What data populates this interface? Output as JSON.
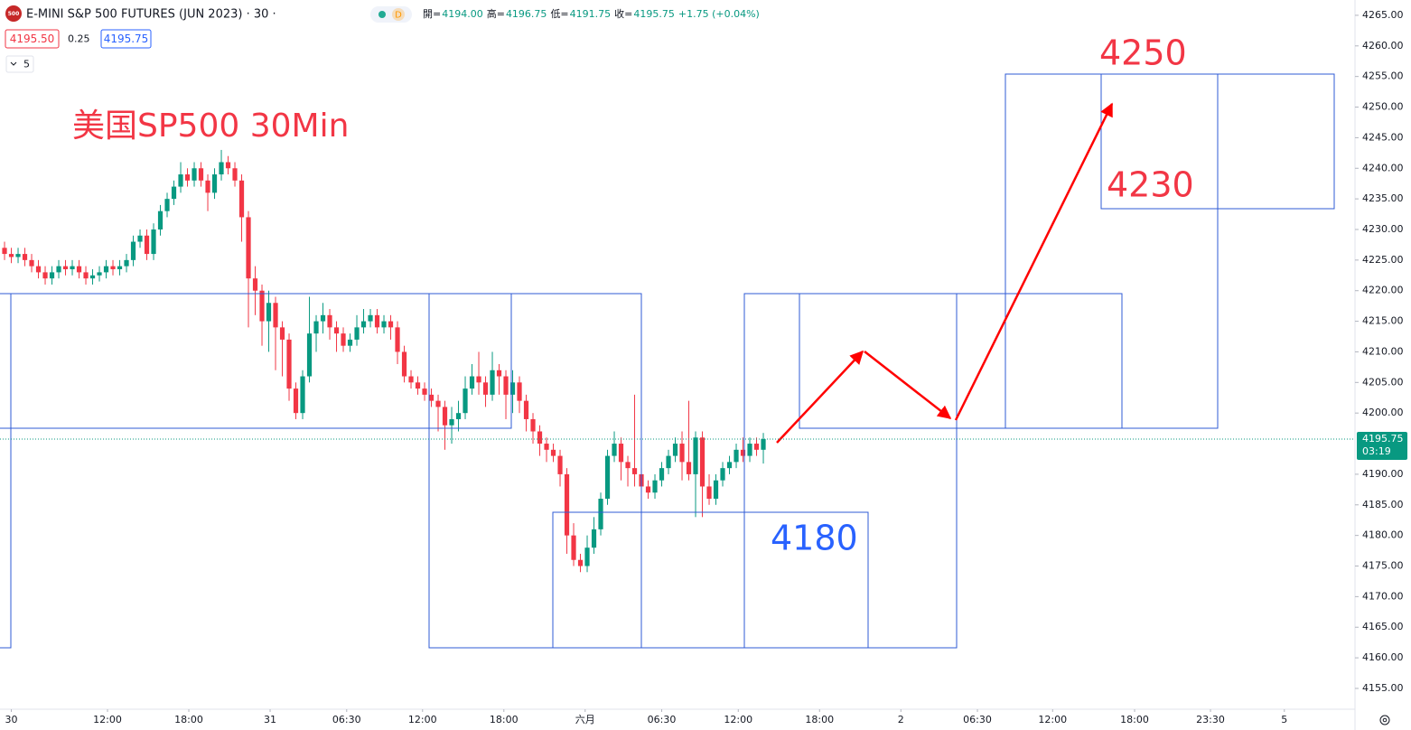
{
  "header": {
    "symbol_icon": "500",
    "symbol": "E-MINI S&P 500 FUTURES (JUN 2023) · 30 ·",
    "status": "D",
    "ohlc": [
      {
        "label": "開=",
        "value": "4194.00"
      },
      {
        "label": "高=",
        "value": "4196.75"
      },
      {
        "label": "低=",
        "value": "4191.75"
      },
      {
        "label": "收=",
        "value": "4195.75"
      }
    ],
    "change": "+1.75 (+0.04%)",
    "bid": "4195.50",
    "spread": "0.25",
    "ask": "4195.75",
    "indicator_count": "5"
  },
  "chart_data": {
    "type": "candlestick",
    "title": "美国SP500 30Min",
    "annotations": [
      "4250",
      "4230",
      "4180"
    ],
    "countdown": "03:19",
    "up_color": "#089981",
    "down_color": "#f23645",
    "grid": false,
    "open": [
      4227,
      4226,
      4225.5,
      4226,
      4225,
      4224,
      4223,
      4222,
      4223,
      4224,
      4223.5,
      4224,
      4223,
      4222,
      4222.5,
      4223,
      4224,
      4223.5,
      4224,
      4225,
      4228,
      4229,
      4226,
      4230,
      4233,
      4235,
      4237,
      4239,
      4238,
      4240,
      4238,
      4236,
      4239,
      4241,
      4240,
      4238,
      4232,
      4222,
      4220,
      4215,
      4218,
      4214,
      4212,
      4204,
      4200,
      4206,
      4213,
      4215,
      4216,
      4214,
      4213,
      4211,
      4212,
      4214,
      4215,
      4216,
      4214,
      4215,
      4214,
      4210,
      4206,
      4205,
      4204,
      4203,
      4202,
      4201,
      4198,
      4199,
      4200,
      4204,
      4206,
      4205,
      4203,
      4207,
      4206,
      4203,
      4205,
      4202,
      4199,
      4197,
      4195,
      4194,
      4193,
      4190,
      4180,
      4176,
      4175,
      4178,
      4181,
      4186,
      4193,
      4195,
      4192,
      4191,
      4190,
      4188,
      4187,
      4189,
      4191,
      4193,
      4195,
      4192,
      4190,
      4196,
      4188,
      4186,
      4189,
      4191,
      4192,
      4194,
      4193,
      4195,
      4194
    ],
    "high": [
      4228,
      4227,
      4227,
      4227,
      4226,
      4225,
      4224,
      4224,
      4225,
      4225,
      4225,
      4225,
      4224,
      4223.5,
      4224,
      4225,
      4225,
      4225,
      4226,
      4229,
      4230,
      4230,
      4231,
      4234,
      4236,
      4238,
      4241,
      4240,
      4241,
      4241,
      4239,
      4240,
      4243,
      4242,
      4241,
      4239,
      4233,
      4224,
      4221,
      4220,
      4219,
      4215,
      4213,
      4205,
      4207,
      4219,
      4216,
      4218,
      4217,
      4215,
      4214,
      4213,
      4216,
      4217,
      4217,
      4217,
      4216,
      4216,
      4215,
      4211,
      4207,
      4206,
      4205,
      4204,
      4203,
      4202,
      4201,
      4202,
      4206,
      4208,
      4210,
      4206,
      4210,
      4208,
      4207,
      4207,
      4206,
      4203,
      4200,
      4198,
      4196,
      4195,
      4194,
      4191,
      4182,
      4177,
      4180,
      4183,
      4187,
      4194,
      4197,
      4196,
      4193,
      4203,
      4191,
      4189,
      4190,
      4192,
      4194,
      4196,
      4197,
      4202,
      4197,
      4197,
      4190,
      4190,
      4192,
      4193,
      4195,
      4196,
      4196,
      4196,
      4196.75
    ],
    "low": [
      4225,
      4224.5,
      4224.5,
      4224,
      4223,
      4222,
      4221,
      4221,
      4222,
      4222.5,
      4222.5,
      4222,
      4221,
      4221,
      4221.5,
      4222,
      4222.5,
      4222.5,
      4223,
      4224,
      4227,
      4225,
      4225,
      4229,
      4232,
      4234,
      4236,
      4237,
      4237,
      4237,
      4233,
      4235,
      4238,
      4239,
      4237,
      4228,
      4214,
      4216,
      4211,
      4210,
      4207,
      4206,
      4202,
      4199,
      4199,
      4205,
      4210,
      4213,
      4212,
      4210,
      4210,
      4210,
      4211,
      4213,
      4214,
      4213,
      4213,
      4212,
      4208,
      4205,
      4204,
      4203,
      4202,
      4201,
      4197,
      4194,
      4195,
      4197,
      4199,
      4203,
      4203,
      4201,
      4202,
      4203,
      4199,
      4200,
      4200,
      4197,
      4195,
      4193,
      4192,
      4192,
      4188,
      4177,
      4175,
      4174,
      4174,
      4177,
      4180,
      4185,
      4192,
      4189,
      4188,
      4188,
      4187,
      4186,
      4186,
      4188,
      4190,
      4192,
      4189,
      4189,
      4183,
      4183,
      4185,
      4185,
      4188,
      4190,
      4191,
      4192,
      4192,
      4193,
      4191.75
    ],
    "close": [
      4226,
      4225.5,
      4226,
      4225,
      4224,
      4223,
      4222,
      4223,
      4224,
      4223.5,
      4224,
      4223,
      4222,
      4222.5,
      4223,
      4224,
      4223.5,
      4224,
      4225,
      4228,
      4229,
      4226,
      4230,
      4233,
      4235,
      4237,
      4239,
      4238,
      4240,
      4238,
      4236,
      4239,
      4241,
      4240,
      4238,
      4232,
      4222,
      4220,
      4215,
      4218,
      4214,
      4212,
      4204,
      4200,
      4206,
      4213,
      4215,
      4216,
      4214,
      4213,
      4211,
      4212,
      4214,
      4215,
      4216,
      4214,
      4215,
      4214,
      4210,
      4206,
      4205,
      4204,
      4203,
      4202,
      4201,
      4198,
      4199,
      4200,
      4204,
      4206,
      4205,
      4203,
      4207,
      4206,
      4203,
      4205,
      4202,
      4199,
      4197,
      4195,
      4194,
      4193,
      4190,
      4180,
      4176,
      4175,
      4178,
      4181,
      4186,
      4193,
      4195,
      4192,
      4191,
      4190,
      4188,
      4187,
      4189,
      4191,
      4193,
      4195,
      4192,
      4190,
      4196,
      4188,
      4186,
      4189,
      4191,
      4192,
      4194,
      4193,
      4195,
      4194,
      4195.75
    ],
    "ylim": [
      4151.6,
      4267.5
    ],
    "yticks": [
      {
        "value": 4155,
        "label": "4155.00"
      },
      {
        "value": 4160,
        "label": "4160.00"
      },
      {
        "value": 4165,
        "label": "4165.00"
      },
      {
        "value": 4170,
        "label": "4170.00"
      },
      {
        "value": 4175,
        "label": "4175.00"
      },
      {
        "value": 4180,
        "label": "4180.00"
      },
      {
        "value": 4185,
        "label": "4185.00"
      },
      {
        "value": 4190,
        "label": "4190.00"
      },
      {
        "value": 4200,
        "label": "4200.00"
      },
      {
        "value": 4205,
        "label": "4205.00"
      },
      {
        "value": 4210,
        "label": "4210.00"
      },
      {
        "value": 4215,
        "label": "4215.00"
      },
      {
        "value": 4220,
        "label": "4220.00"
      },
      {
        "value": 4225,
        "label": "4225.00"
      },
      {
        "value": 4230,
        "label": "4230.00"
      },
      {
        "value": 4235,
        "label": "4235.00"
      },
      {
        "value": 4240,
        "label": "4240.00"
      },
      {
        "value": 4245,
        "label": "4245.00"
      },
      {
        "value": 4250,
        "label": "4250.00"
      },
      {
        "value": 4255,
        "label": "4255.00"
      },
      {
        "value": 4260,
        "label": "4260.00"
      },
      {
        "value": 4265,
        "label": "4265.00"
      }
    ],
    "xlim": [
      -0.67,
      199.33
    ],
    "xticks": [
      {
        "value": 1,
        "label": "30"
      },
      {
        "value": 15.2,
        "label": "12:00"
      },
      {
        "value": 27.2,
        "label": "18:00"
      },
      {
        "value": 39.2,
        "label": "31"
      },
      {
        "value": 50.5,
        "label": "06:30"
      },
      {
        "value": 61.7,
        "label": "12:00"
      },
      {
        "value": 73.7,
        "label": "18:00"
      },
      {
        "value": 85.7,
        "label": "六月"
      },
      {
        "value": 97,
        "label": "06:30"
      },
      {
        "value": 108.3,
        "label": "12:00"
      },
      {
        "value": 120.3,
        "label": "18:00"
      },
      {
        "value": 132.3,
        "label": "2"
      },
      {
        "value": 143.6,
        "label": "06:30"
      },
      {
        "value": 154.7,
        "label": "12:00"
      },
      {
        "value": 166.8,
        "label": "18:00"
      },
      {
        "value": 178,
        "label": "23:30"
      },
      {
        "value": 188.9,
        "label": "5"
      }
    ]
  }
}
